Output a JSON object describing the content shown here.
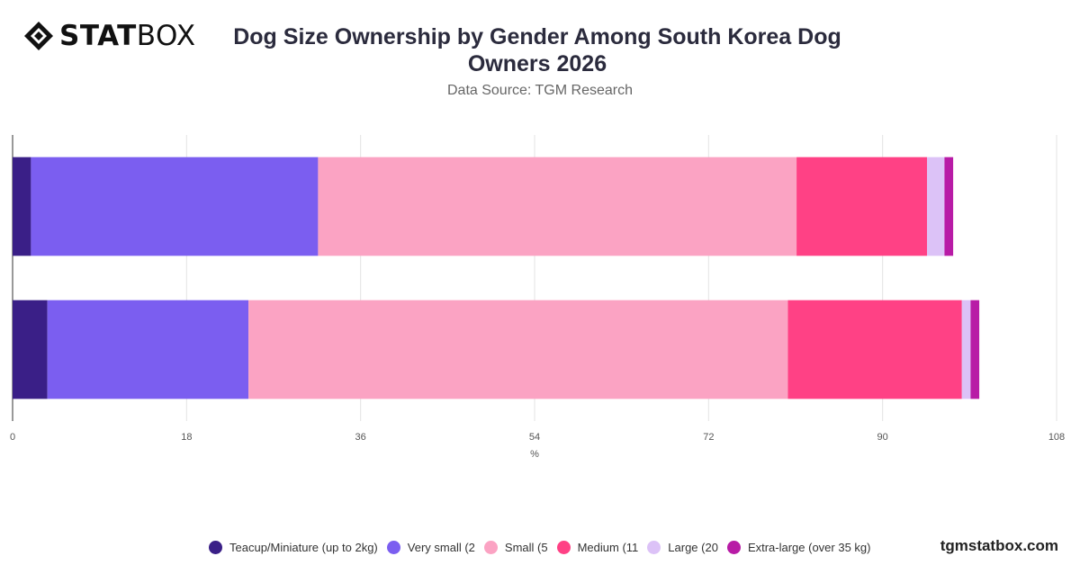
{
  "header": {
    "logo_bold": "STAT",
    "logo_light": "BOX",
    "title": "Dog Size Ownership by Gender Among South Korea Dog Owners 2026",
    "subtitle": "Data Source: TGM Research"
  },
  "footer": {
    "url": "tgmstatbox.com"
  },
  "chart_data": {
    "type": "bar",
    "orientation": "horizontal",
    "stacked": true,
    "title": "Dog Size Ownership by Gender Among South Korea Dog Owners 2026",
    "xlabel": "%",
    "ylabel": "",
    "xlim": [
      0,
      108
    ],
    "x_ticks": [
      0,
      18,
      36,
      54,
      72,
      90,
      108
    ],
    "grid": true,
    "legend_position": "bottom",
    "categories": [
      "",
      ""
    ],
    "series": [
      {
        "name": "Teacup/Miniature (up to 2kg)",
        "color": "#3a1f87",
        "values": [
          1.9,
          3.6
        ]
      },
      {
        "name": "Very small (2",
        "color": "#7b5ef0",
        "values": [
          29.7,
          20.8
        ]
      },
      {
        "name": "Small (5",
        "color": "#fba3c3",
        "values": [
          49.5,
          55.8
        ]
      },
      {
        "name": "Medium (11",
        "color": "#ff4185",
        "values": [
          13.5,
          18.0
        ]
      },
      {
        "name": "Large (20",
        "color": "#dcc2f7",
        "values": [
          1.8,
          0.9
        ]
      },
      {
        "name": "Extra-large (over 35 kg)",
        "color": "#b81ba6",
        "values": [
          0.9,
          0.9
        ]
      }
    ]
  }
}
